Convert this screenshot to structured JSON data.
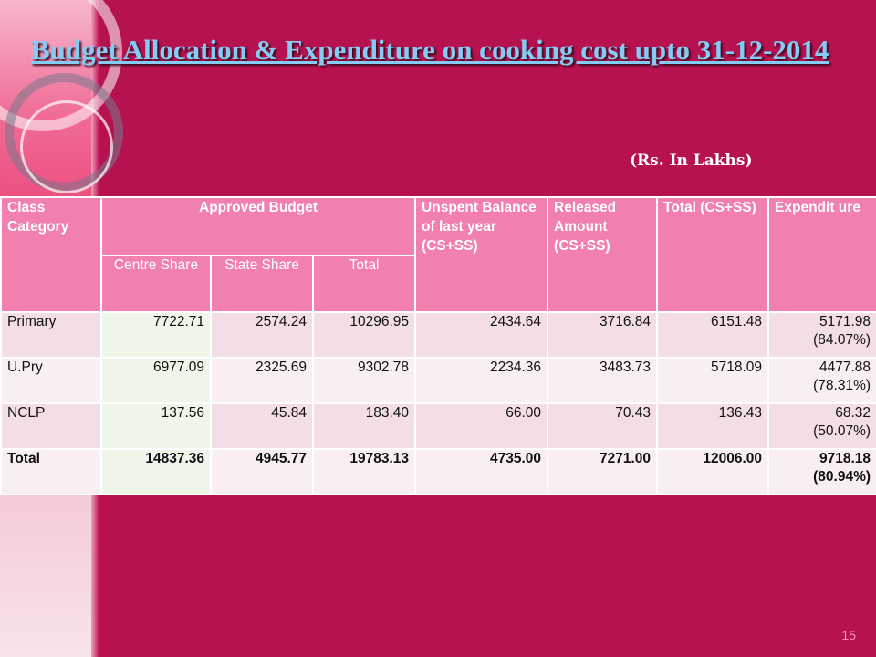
{
  "title": "Budget Allocation & Expenditure on cooking cost upto 31-12-2014",
  "units": "(Rs. In Lakhs)",
  "table": {
    "headers": {
      "class_category": "Class Category",
      "approved_budget": "Approved Budget",
      "unspent": "Unspent Balance of last year (CS+SS)",
      "released": "Released Amount (CS+SS)",
      "total_cs_ss": "Total (CS+SS)",
      "expenditure": "Expendit ure",
      "centre_share": "Centre Share",
      "state_share": "State Share",
      "total": "Total"
    },
    "rows": [
      {
        "category": "Primary",
        "centre": "7722.71",
        "state": "2574.24",
        "total": "10296.95",
        "unspent": "2434.64",
        "released": "3716.84",
        "total_cs_ss": "6151.48",
        "expenditure": "5171.98",
        "expenditure_pct": "(84.07%)"
      },
      {
        "category": "U.Pry",
        "centre": "6977.09",
        "state": "2325.69",
        "total": "9302.78",
        "unspent": "2234.36",
        "released": "3483.73",
        "total_cs_ss": "5718.09",
        "expenditure": "4477.88",
        "expenditure_pct": "(78.31%)"
      },
      {
        "category": "NCLP",
        "centre": "137.56",
        "state": "45.84",
        "total": "183.40",
        "unspent": "66.00",
        "released": "70.43",
        "total_cs_ss": "136.43",
        "expenditure": "68.32",
        "expenditure_pct": "(50.07%)"
      },
      {
        "category": "Total",
        "centre": "14837.36",
        "state": "4945.77",
        "total": "19783.13",
        "unspent": "4735.00",
        "released": "7271.00",
        "total_cs_ss": "12006.00",
        "expenditure": "9718.18",
        "expenditure_pct": "(80.94%)"
      }
    ]
  },
  "page_number": "15",
  "colors": {
    "background": "#b5124f",
    "header": "#f17fb0",
    "title": "#84ccf4"
  }
}
